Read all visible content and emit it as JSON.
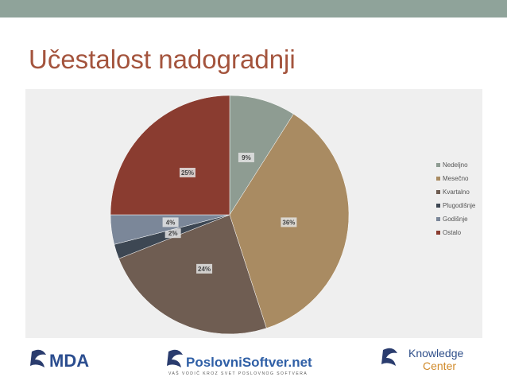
{
  "title": "Učestalost nadogradnji",
  "chart_data": {
    "type": "pie",
    "categories": [
      "Nedeljno",
      "Mesečno",
      "Kvartalno",
      "Plugodišnje",
      "Godišnje",
      "Ostalo"
    ],
    "values": [
      9,
      36,
      24,
      2,
      4,
      25
    ],
    "value_labels": [
      "9%",
      "36%",
      "24%",
      "2%",
      "4%",
      "25%"
    ],
    "colors": [
      "#8e9c92",
      "#a98b62",
      "#6f5d52",
      "#3d4753",
      "#7b8799",
      "#8a3c30"
    ],
    "legend": "right"
  },
  "footer": {
    "logo1": "MDA",
    "logo2": "PoslovniSoftver.net",
    "logo2_tagline": "VAŠ VODIČ KROZ SVET POSLOVNOG SOFTVERA",
    "logo3_line1": "Knowledge",
    "logo3_line2": "Center"
  }
}
